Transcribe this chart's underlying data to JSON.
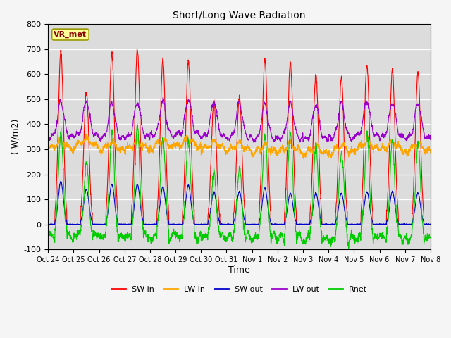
{
  "title": "Short/Long Wave Radiation",
  "xlabel": "Time",
  "ylabel": "( W/m2)",
  "ylim": [
    -100,
    800
  ],
  "yticks": [
    -100,
    0,
    100,
    200,
    300,
    400,
    500,
    600,
    700,
    800
  ],
  "xtick_labels": [
    "Oct 24",
    "Oct 25",
    "Oct 26",
    "Oct 27",
    "Oct 28",
    "Oct 29",
    "Oct 30",
    "Oct 31",
    "Nov 1",
    "Nov 2",
    "Nov 3",
    "Nov 4",
    "Nov 5",
    "Nov 6",
    "Nov 7",
    "Nov 8"
  ],
  "legend_labels": [
    "SW in",
    "LW in",
    "SW out",
    "LW out",
    "Rnet"
  ],
  "legend_colors": [
    "#ff0000",
    "#ffa500",
    "#0000cc",
    "#9900cc",
    "#00cc00"
  ],
  "station_label": "VR_met",
  "background_color": "#dcdcdc",
  "grid_color": "#ffffff",
  "n_days": 15,
  "sw_in_peaks": [
    690,
    530,
    680,
    700,
    660,
    650,
    490,
    510,
    660,
    650,
    600,
    590,
    635,
    615,
    610
  ],
  "sw_out_peaks": [
    170,
    140,
    160,
    160,
    150,
    155,
    130,
    130,
    145,
    125,
    125,
    125,
    130,
    130,
    125
  ],
  "lw_in_base": [
    300,
    310,
    295,
    300,
    305,
    310,
    300,
    295,
    285,
    290,
    280,
    285,
    300,
    295,
    290
  ],
  "lw_out_base": [
    350,
    355,
    345,
    350,
    355,
    360,
    350,
    345,
    340,
    345,
    340,
    345,
    355,
    350,
    345
  ]
}
